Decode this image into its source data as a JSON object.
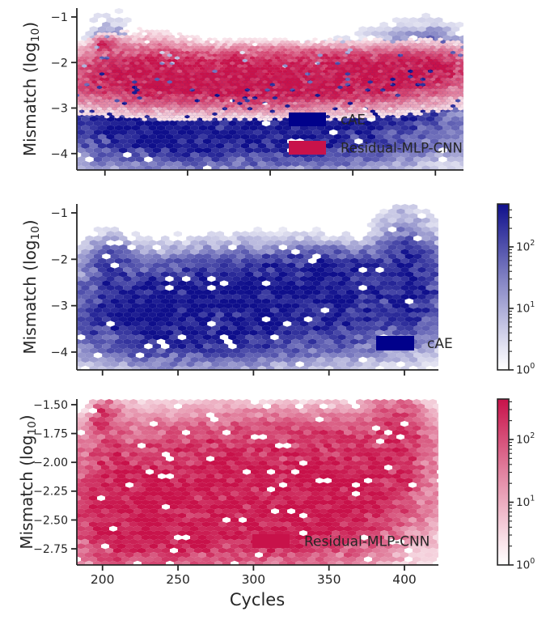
{
  "figure": {
    "background": "#ffffff",
    "ink": "#262626"
  },
  "chart_data": {
    "type": "hexbin",
    "description": "Three stacked hexbin density panels of reconstruction mismatch vs battery cycles",
    "panels": [
      {
        "name": "overlay-cae-vs-residual-mlp-cnn",
        "ylabel": {
          "main": "Mismatch (log",
          "sub": "10",
          "end": ")"
        },
        "xlim": [
          183,
          417
        ],
        "ylim": [
          -4.36,
          -0.805
        ],
        "xticks": [
          200,
          250,
          300,
          350,
          400
        ],
        "xtick_labels": [],
        "yticks": [
          -1,
          -2,
          -3,
          -4
        ],
        "ytick_labels": [
          "−1",
          "−2",
          "−3",
          "−4"
        ],
        "legend": [
          {
            "label": "cAE",
            "color": "#01018b"
          },
          {
            "label": "Residual-MLP-CNN",
            "color": "#c8124a"
          }
        ],
        "series": [
          {
            "name": "cAE",
            "max_color": "#0f0f8c",
            "hex_rx": 5.2,
            "hex_ry": 3.7,
            "max_count": 400,
            "seed": 3,
            "clusters": [
              [
                262,
                -3.05,
                45,
                0.38,
                1.0
              ],
              [
                318,
                -3.1,
                38,
                0.36,
                0.95
              ],
              [
                232,
                -3.25,
                22,
                0.42,
                0.85
              ],
              [
                285,
                -3.75,
                55,
                0.28,
                0.5
              ],
              [
                360,
                -2.85,
                22,
                0.38,
                0.55
              ],
              [
                385,
                -2.55,
                16,
                0.45,
                0.5
              ],
              [
                400,
                -2.15,
                9,
                0.35,
                0.4
              ],
              [
                373,
                -2.1,
                22,
                0.22,
                0.25
              ],
              [
                203,
                -2.6,
                6,
                0.55,
                0.4
              ],
              [
                210,
                -2.3,
                7,
                0.25,
                0.3
              ]
            ]
          },
          {
            "name": "Residual-MLP-CNN",
            "max_color": "#c8124a",
            "hex_rx": 3.1,
            "hex_ry": 2.2,
            "max_count": 400,
            "seed": 7,
            "clusters": [
              [
                248,
                -2.38,
                38,
                0.24,
                1.0
              ],
              [
                308,
                -2.45,
                42,
                0.23,
                1.0
              ],
              [
                358,
                -2.35,
                24,
                0.21,
                0.85
              ],
              [
                392,
                -2.15,
                14,
                0.19,
                0.75
              ],
              [
                288,
                -2.08,
                65,
                0.17,
                0.4
              ],
              [
                225,
                -2.2,
                14,
                0.28,
                0.5
              ],
              [
                201,
                -1.63,
                4,
                0.08,
                0.6
              ],
              [
                330,
                -1.92,
                55,
                0.13,
                0.2
              ]
            ]
          }
        ]
      },
      {
        "name": "cae-only",
        "ylabel": {
          "main": "Mismatch (log",
          "sub": "10",
          "end": ")"
        },
        "xlim": [
          183,
          422.5
        ],
        "ylim": [
          -4.384,
          -0.808
        ],
        "xticks": [
          200,
          250,
          300,
          350,
          400
        ],
        "xtick_labels": [],
        "yticks": [
          -1,
          -2,
          -3,
          -4
        ],
        "ytick_labels": [
          "−1",
          "−2",
          "−3",
          "−4"
        ],
        "legend": [
          {
            "label": "cAE",
            "color": "#01018b"
          }
        ],
        "colorbar": {
          "base": "10",
          "ticks": [
            {
              "exp": "0"
            },
            {
              "exp": "1"
            },
            {
              "exp": "2"
            }
          ],
          "min": 1,
          "max": 500,
          "color": "#0f0f8c"
        },
        "series": [
          {
            "name": "cAE",
            "max_color": "#0f0f8c",
            "hex_rx": 5.2,
            "hex_ry": 3.7,
            "max_count": 400,
            "seed": 11,
            "clusters": [
              [
                262,
                -2.9,
                36,
                0.4,
                1.0
              ],
              [
                312,
                -2.8,
                33,
                0.4,
                0.95
              ],
              [
                345,
                -2.55,
                18,
                0.3,
                0.7
              ],
              [
                288,
                -3.45,
                50,
                0.35,
                0.6
              ],
              [
                238,
                -3.25,
                28,
                0.4,
                0.65
              ],
              [
                368,
                -2.9,
                16,
                0.42,
                0.5
              ],
              [
                400,
                -2.5,
                9,
                0.55,
                0.55
              ],
              [
                398,
                -1.85,
                7,
                0.13,
                0.35
              ],
              [
                352,
                -2.12,
                32,
                0.18,
                0.3
              ],
              [
                206,
                -2.2,
                8,
                0.28,
                0.35
              ],
              [
                412,
                -2.7,
                8,
                0.45,
                0.4
              ]
            ]
          }
        ]
      },
      {
        "name": "residual-mlp-cnn-only",
        "ylabel": {
          "main": "Mismatch (log",
          "sub": "10",
          "end": ")"
        },
        "xlabel": "Cycles",
        "xlim": [
          183,
          422.5
        ],
        "ylim": [
          -2.89,
          -1.451
        ],
        "xticks": [
          200,
          250,
          300,
          350,
          400
        ],
        "xtick_labels": [
          "200",
          "250",
          "300",
          "350",
          "400"
        ],
        "yticks": [
          -1.5,
          -1.75,
          -2.0,
          -2.25,
          -2.5,
          -2.75
        ],
        "ytick_labels": [
          "−1.50",
          "−1.75",
          "−2.00",
          "−2.25",
          "−2.50",
          "−2.75"
        ],
        "legend": [
          {
            "label": "Residual-MLP-CNN",
            "color": "#c8124a"
          }
        ],
        "colorbar": {
          "base": "10",
          "ticks": [
            {
              "exp": "0"
            },
            {
              "exp": "1"
            },
            {
              "exp": "2"
            }
          ],
          "min": 1,
          "max": 450,
          "color": "#c8124a"
        },
        "series": [
          {
            "name": "Residual-MLP-CNN",
            "max_color": "#c8124a",
            "hex_rx": 5.0,
            "hex_ry": 3.6,
            "max_count": 400,
            "seed": 19,
            "clusters": [
              [
                252,
                -2.42,
                38,
                0.2,
                1.0
              ],
              [
                305,
                -2.45,
                40,
                0.2,
                0.95
              ],
              [
                278,
                -2.08,
                55,
                0.2,
                0.55
              ],
              [
                340,
                -2.35,
                24,
                0.22,
                0.75
              ],
              [
                372,
                -2.2,
                18,
                0.24,
                0.6
              ],
              [
                396,
                -1.85,
                9,
                0.22,
                0.55
              ],
              [
                228,
                -2.58,
                22,
                0.18,
                0.6
              ],
              [
                208,
                -2.3,
                8,
                0.32,
                0.5
              ],
              [
                201,
                -1.62,
                4,
                0.07,
                0.65
              ],
              [
                318,
                -1.83,
                45,
                0.13,
                0.3
              ]
            ]
          }
        ]
      }
    ]
  }
}
